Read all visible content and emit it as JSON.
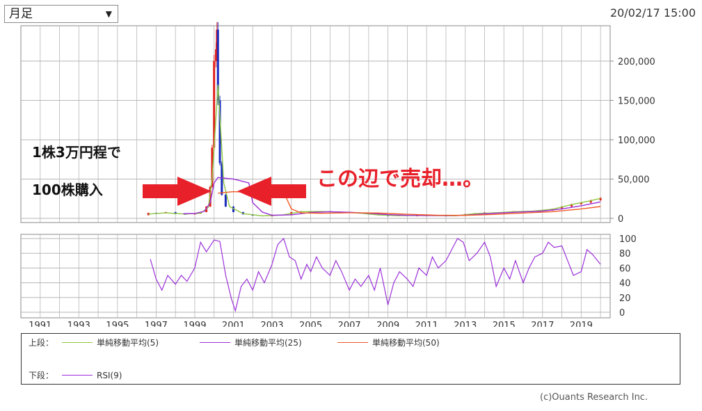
{
  "period_select": {
    "value": "月足"
  },
  "timestamp": "20/02/17 15:00",
  "annotations": {
    "line1": "1株3万円程で",
    "line2": "100株購入",
    "sell": "この辺で売却…。"
  },
  "legend": {
    "upper_label": "上段：",
    "lower_label": "下段：",
    "items_upper": [
      {
        "name": "単純移動平均(5)",
        "color": "#8dc63f"
      },
      {
        "name": "単純移動平均(25)",
        "color": "#9b30d9"
      },
      {
        "name": "単純移動平均(50)",
        "color": "#f15a24"
      }
    ],
    "items_lower": [
      {
        "name": "RSI(9)",
        "color": "#9b30d9"
      }
    ]
  },
  "copyright": "(c)Ouants Research Inc.",
  "colors": {
    "up": "#e0201c",
    "down": "#1a2bbf",
    "annotation": "#e8202a"
  },
  "chart_data": [
    {
      "type": "line",
      "panel": "price",
      "y_ticks": [
        "0",
        "50,000",
        "100,000",
        "150,000",
        "200,000"
      ],
      "ylim": [
        0,
        245000
      ],
      "xlim": [
        1990,
        2020.5
      ],
      "price": [
        [
          1996.2,
          4000
        ],
        [
          1996.6,
          7000
        ],
        [
          1997.0,
          6500
        ],
        [
          1997.5,
          8000
        ],
        [
          1998.0,
          5500
        ],
        [
          1998.5,
          5000
        ],
        [
          1999.0,
          6000
        ],
        [
          1999.3,
          8000
        ],
        [
          1999.6,
          15000
        ],
        [
          1999.8,
          40000
        ],
        [
          1999.9,
          90000
        ],
        [
          2000.0,
          200000
        ],
        [
          2000.1,
          215000
        ],
        [
          2000.15,
          240000
        ],
        [
          2000.2,
          150000
        ],
        [
          2000.3,
          70000
        ],
        [
          2000.4,
          30000
        ],
        [
          2000.6,
          15000
        ],
        [
          2001.0,
          8000
        ],
        [
          2001.5,
          5000
        ],
        [
          2002.0,
          3500
        ],
        [
          2002.5,
          3000
        ],
        [
          2003.0,
          3500
        ],
        [
          2003.5,
          4500
        ],
        [
          2004.0,
          8000
        ],
        [
          2004.5,
          9000
        ],
        [
          2005.0,
          8500
        ],
        [
          2005.5,
          9000
        ],
        [
          2006.0,
          8500
        ],
        [
          2006.5,
          7500
        ],
        [
          2007.0,
          7000
        ],
        [
          2007.5,
          6500
        ],
        [
          2008.0,
          5000
        ],
        [
          2008.5,
          4000
        ],
        [
          2009.0,
          3000
        ],
        [
          2009.5,
          4000
        ],
        [
          2010.0,
          3500
        ],
        [
          2010.5,
          3500
        ],
        [
          2011.0,
          3800
        ],
        [
          2011.5,
          3500
        ],
        [
          2012.0,
          3000
        ],
        [
          2012.5,
          3500
        ],
        [
          2013.0,
          5500
        ],
        [
          2013.5,
          6500
        ],
        [
          2014.0,
          7500
        ],
        [
          2014.5,
          6500
        ],
        [
          2015.0,
          8000
        ],
        [
          2015.5,
          9000
        ],
        [
          2016.0,
          8500
        ],
        [
          2016.5,
          9500
        ],
        [
          2017.0,
          10000
        ],
        [
          2017.5,
          12000
        ],
        [
          2018.0,
          15000
        ],
        [
          2018.5,
          18000
        ],
        [
          2019.0,
          20000
        ],
        [
          2019.5,
          23000
        ],
        [
          2020.0,
          26000
        ]
      ],
      "series": [
        {
          "name": "単純移動平均(5)",
          "values": [
            [
              1996.6,
              5500
            ],
            [
              1997.5,
              7000
            ],
            [
              1998.5,
              5500
            ],
            [
              1999.3,
              6500
            ],
            [
              1999.7,
              14000
            ],
            [
              1999.9,
              50000
            ],
            [
              2000.1,
              130000
            ],
            [
              2000.2,
              170000
            ],
            [
              2000.35,
              110000
            ],
            [
              2000.5,
              45000
            ],
            [
              2000.8,
              15000
            ],
            [
              2001.5,
              6000
            ],
            [
              2002.5,
              3200
            ],
            [
              2003.5,
              4200
            ],
            [
              2004.5,
              8500
            ],
            [
              2005.5,
              8800
            ],
            [
              2006.5,
              8000
            ],
            [
              2007.5,
              6800
            ],
            [
              2008.5,
              4300
            ],
            [
              2009.5,
              3500
            ],
            [
              2010.5,
              3600
            ],
            [
              2011.5,
              3600
            ],
            [
              2012.5,
              3300
            ],
            [
              2013.5,
              6000
            ],
            [
              2014.5,
              7000
            ],
            [
              2015.5,
              8500
            ],
            [
              2016.5,
              9200
            ],
            [
              2017.5,
              11500
            ],
            [
              2018.5,
              17500
            ],
            [
              2019.5,
              22500
            ],
            [
              2020.0,
              25500
            ]
          ]
        },
        {
          "name": "単純移動平均(25)",
          "values": [
            [
              1998.4,
              6000
            ],
            [
              1999.0,
              6200
            ],
            [
              1999.5,
              9000
            ],
            [
              1999.8,
              20000
            ],
            [
              2000.0,
              45000
            ],
            [
              2000.2,
              52000
            ],
            [
              2001.0,
              50000
            ],
            [
              2001.8,
              45000
            ],
            [
              2002.0,
              20000
            ],
            [
              2002.5,
              8000
            ],
            [
              2003.0,
              4000
            ],
            [
              2004.0,
              4500
            ],
            [
              2005.0,
              7500
            ],
            [
              2006.0,
              8500
            ],
            [
              2007.0,
              7800
            ],
            [
              2008.0,
              6500
            ],
            [
              2009.0,
              4800
            ],
            [
              2010.0,
              3800
            ],
            [
              2011.0,
              3600
            ],
            [
              2012.0,
              3500
            ],
            [
              2013.0,
              4000
            ],
            [
              2014.0,
              5800
            ],
            [
              2015.0,
              7200
            ],
            [
              2016.0,
              8200
            ],
            [
              2017.0,
              9300
            ],
            [
              2018.0,
              12000
            ],
            [
              2019.0,
              16000
            ],
            [
              2020.0,
              21000
            ]
          ]
        },
        {
          "name": "単純移動平均(50)",
          "values": [
            [
              2000.2,
              32000
            ],
            [
              2001.0,
              34000
            ],
            [
              2002.0,
              33000
            ],
            [
              2003.0,
              30000
            ],
            [
              2003.7,
              28000
            ],
            [
              2004.0,
              12000
            ],
            [
              2004.5,
              7000
            ],
            [
              2005.5,
              6500
            ],
            [
              2007.0,
              7200
            ],
            [
              2008.5,
              6800
            ],
            [
              2010.0,
              5200
            ],
            [
              2011.5,
              4000
            ],
            [
              2013.0,
              3800
            ],
            [
              2014.5,
              5000
            ],
            [
              2016.0,
              6800
            ],
            [
              2017.5,
              8500
            ],
            [
              2019.0,
              12000
            ],
            [
              2020.0,
              15000
            ]
          ]
        }
      ]
    },
    {
      "type": "line",
      "panel": "rsi",
      "x_ticks": [
        "1991",
        "1993",
        "1995",
        "1997",
        "1999",
        "2001",
        "2003",
        "2005",
        "2007",
        "2009",
        "2011",
        "2013",
        "2015",
        "2017",
        "2019"
      ],
      "y_ticks": [
        "0",
        "20",
        "40",
        "60",
        "80",
        "100"
      ],
      "ylim": [
        0,
        100
      ],
      "series": [
        {
          "name": "RSI(9)",
          "values": [
            [
              1996.7,
              72
            ],
            [
              1997.0,
              45
            ],
            [
              1997.3,
              30
            ],
            [
              1997.6,
              50
            ],
            [
              1998.0,
              38
            ],
            [
              1998.3,
              50
            ],
            [
              1998.6,
              42
            ],
            [
              1999.0,
              60
            ],
            [
              1999.3,
              95
            ],
            [
              1999.6,
              82
            ],
            [
              2000.0,
              98
            ],
            [
              2000.3,
              96
            ],
            [
              2000.6,
              50
            ],
            [
              2000.9,
              18
            ],
            [
              2001.1,
              2
            ],
            [
              2001.4,
              35
            ],
            [
              2001.7,
              45
            ],
            [
              2002.0,
              30
            ],
            [
              2002.3,
              55
            ],
            [
              2002.6,
              40
            ],
            [
              2003.0,
              65
            ],
            [
              2003.3,
              92
            ],
            [
              2003.6,
              100
            ],
            [
              2003.9,
              75
            ],
            [
              2004.2,
              70
            ],
            [
              2004.5,
              45
            ],
            [
              2004.8,
              65
            ],
            [
              2005.0,
              55
            ],
            [
              2005.3,
              75
            ],
            [
              2005.6,
              60
            ],
            [
              2006.0,
              50
            ],
            [
              2006.3,
              70
            ],
            [
              2006.6,
              55
            ],
            [
              2007.0,
              30
            ],
            [
              2007.3,
              45
            ],
            [
              2007.6,
              35
            ],
            [
              2008.0,
              50
            ],
            [
              2008.3,
              30
            ],
            [
              2008.6,
              60
            ],
            [
              2009.0,
              10
            ],
            [
              2009.3,
              40
            ],
            [
              2009.6,
              55
            ],
            [
              2010.0,
              45
            ],
            [
              2010.3,
              35
            ],
            [
              2010.6,
              60
            ],
            [
              2011.0,
              50
            ],
            [
              2011.3,
              75
            ],
            [
              2011.6,
              60
            ],
            [
              2012.0,
              70
            ],
            [
              2012.3,
              85
            ],
            [
              2012.6,
              100
            ],
            [
              2012.9,
              95
            ],
            [
              2013.2,
              70
            ],
            [
              2013.6,
              80
            ],
            [
              2014.0,
              95
            ],
            [
              2014.3,
              75
            ],
            [
              2014.6,
              35
            ],
            [
              2015.0,
              60
            ],
            [
              2015.3,
              45
            ],
            [
              2015.6,
              70
            ],
            [
              2016.0,
              40
            ],
            [
              2016.3,
              60
            ],
            [
              2016.6,
              75
            ],
            [
              2017.0,
              80
            ],
            [
              2017.3,
              95
            ],
            [
              2017.6,
              88
            ],
            [
              2018.0,
              90
            ],
            [
              2018.3,
              70
            ],
            [
              2018.6,
              50
            ],
            [
              2019.0,
              55
            ],
            [
              2019.3,
              85
            ],
            [
              2019.6,
              78
            ],
            [
              2020.0,
              65
            ]
          ]
        }
      ]
    }
  ]
}
